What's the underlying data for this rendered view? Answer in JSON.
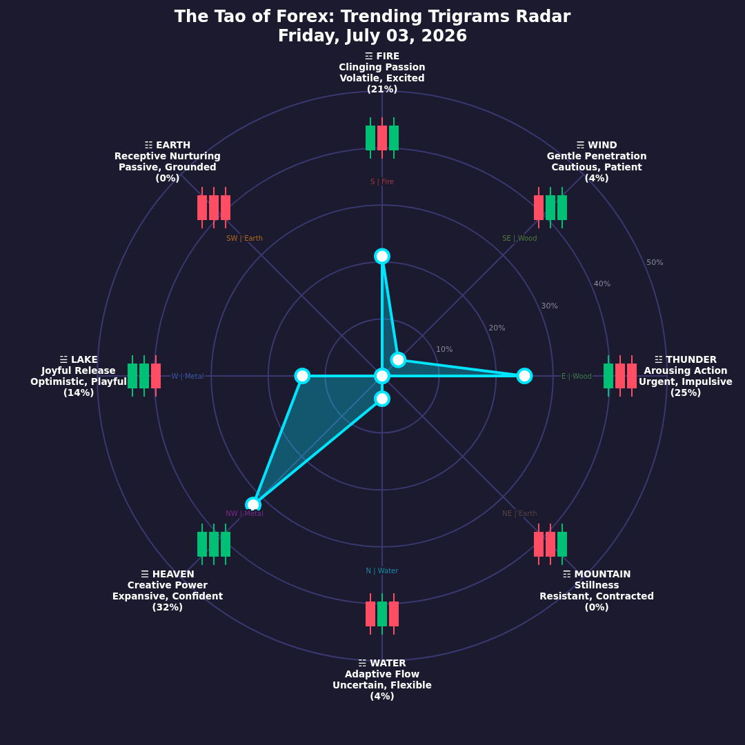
{
  "chart_data": {
    "type": "radar",
    "title": "The Tao of Forex: Trending Trigrams Radar",
    "subtitle": "Friday, July 03, 2026",
    "categories": [
      "☲ FIRE\nClinging Passion\nVolatile, Excited\n(21%)",
      "☴ WIND\nGentle Penetration\nCautious, Patient\n(4%)",
      "☳ THUNDER\nArousing Action\nUrgent, Impulsive\n(25%)",
      "☶ MOUNTAIN\nStillness\nResistant, Contracted\n(0%)",
      "☵ WATER\nAdaptive Flow\nUncertain, Flexible\n(4%)",
      "☰ HEAVEN\nCreative Power\nExpansive, Confident\n(32%)",
      "☱ LAKE\nJoyful Release\nOptimistic, Playful\n(14%)",
      "☷ EARTH\nReceptive Nurturing\nPassive, Grounded\n(0%)"
    ],
    "series": [
      {
        "color": "#00e5ff",
        "values": [
          21,
          4,
          25,
          0,
          4,
          32,
          14,
          0
        ]
      }
    ],
    "ylim": [
      0,
      50
    ],
    "yticks": [
      {
        "value": 10,
        "label": "10%"
      },
      {
        "value": 20,
        "label": "20%"
      },
      {
        "value": 30,
        "label": "30%"
      },
      {
        "value": 40,
        "label": "40%"
      },
      {
        "value": 50,
        "label": "50%"
      }
    ],
    "grid": true,
    "marker": "circle",
    "annotations": [
      "S | Fire",
      "SE | Wood",
      "E | Wood",
      "NE | Earth",
      "N | Water",
      "NW | Metal",
      "W | Metal",
      "SW | Earth"
    ]
  }
}
